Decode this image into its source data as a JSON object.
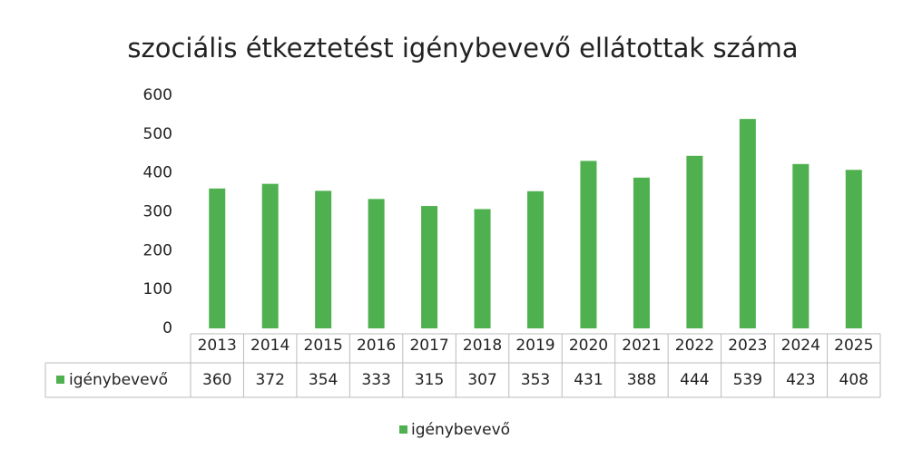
{
  "chart_data": {
    "type": "bar",
    "title": "szociális étkeztetést igénybevevő ellátottak száma",
    "categories": [
      "2013",
      "2014",
      "2015",
      "2016",
      "2017",
      "2018",
      "2019",
      "2020",
      "2021",
      "2022",
      "2023",
      "2024",
      "2025"
    ],
    "series": [
      {
        "name": "igénybevevő",
        "color": "#4fb04f",
        "values": [
          360,
          372,
          354,
          333,
          315,
          307,
          353,
          431,
          388,
          444,
          539,
          423,
          408
        ]
      }
    ],
    "ylim": [
      0,
      600
    ],
    "yticks": [
      0,
      100,
      200,
      300,
      400,
      500,
      600
    ],
    "grid": false,
    "data_table": true,
    "legend": "bottom"
  }
}
